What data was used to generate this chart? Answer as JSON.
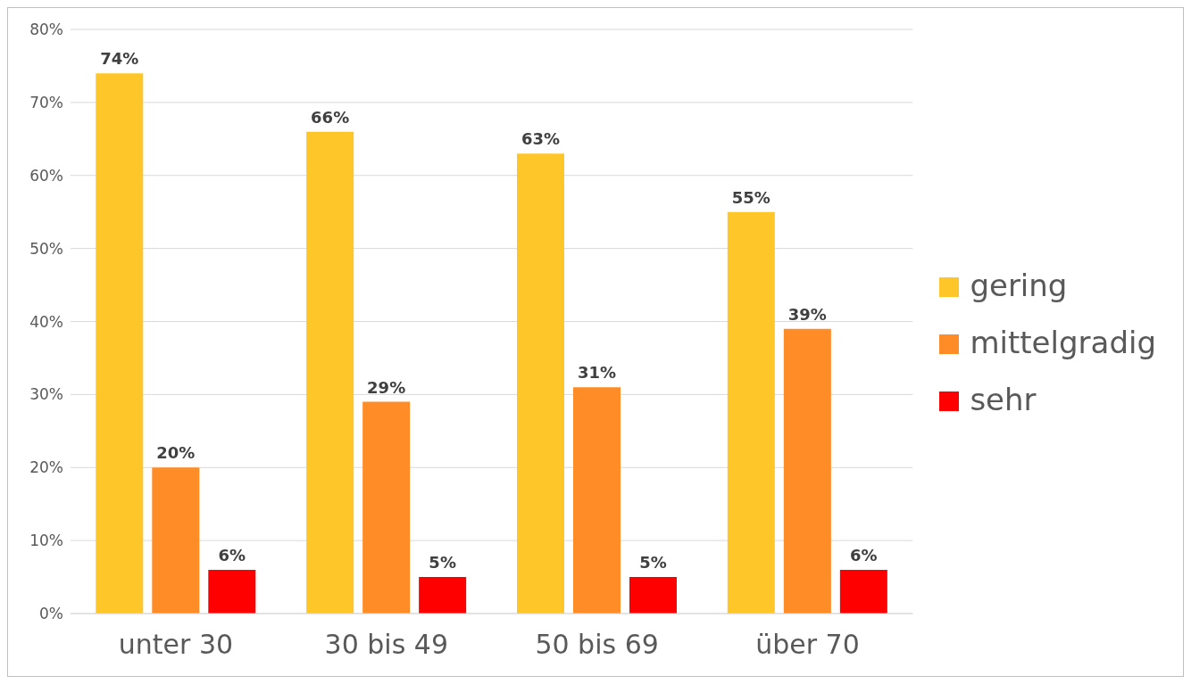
{
  "chart_data": {
    "type": "bar",
    "categories": [
      "unter 30",
      "30 bis 49",
      "50 bis 69",
      "über 70"
    ],
    "series": [
      {
        "name": "gering",
        "color": "#ffc629",
        "values": [
          74,
          66,
          63,
          55
        ],
        "value_labels": [
          "74%",
          "66%",
          "63%",
          "55%"
        ]
      },
      {
        "name": "mittelgradig",
        "color": "#ff8c26",
        "values": [
          20,
          29,
          31,
          39
        ],
        "value_labels": [
          "20%",
          "29%",
          "31%",
          "39%"
        ]
      },
      {
        "name": "sehr",
        "color": "#ff0000",
        "values": [
          6,
          5,
          5,
          6
        ],
        "value_labels": [
          "6%",
          "5%",
          "5%",
          "6%"
        ]
      }
    ],
    "ylim": [
      0,
      80
    ],
    "yticks": [
      {
        "value": 0,
        "label": "0%"
      },
      {
        "value": 10,
        "label": "10%"
      },
      {
        "value": 20,
        "label": "20%"
      },
      {
        "value": 30,
        "label": "30%"
      },
      {
        "value": 40,
        "label": "40%"
      },
      {
        "value": 50,
        "label": "50%"
      },
      {
        "value": 60,
        "label": "60%"
      },
      {
        "value": 70,
        "label": "70%"
      },
      {
        "value": 80,
        "label": "80%"
      }
    ],
    "grid": "y",
    "legend": "right"
  }
}
